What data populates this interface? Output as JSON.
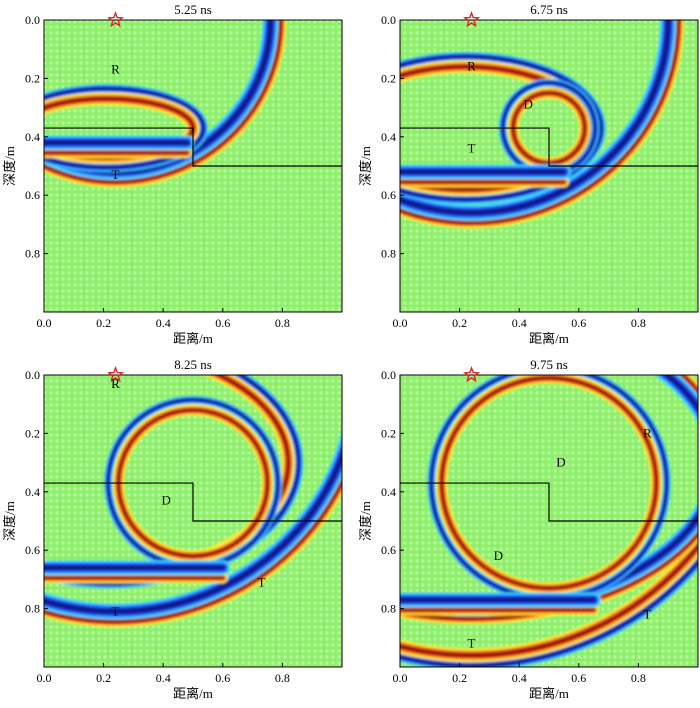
{
  "chart_data": [
    {
      "type": "heatmap",
      "title": "5.25 ns",
      "xlabel": "距离/m",
      "ylabel": "深度/m",
      "xlim": [
        0,
        1.0
      ],
      "ylim": [
        1.0,
        0
      ],
      "xticks": [
        "0.0",
        "0.2",
        "0.4",
        "0.6",
        "0.8"
      ],
      "yticks": [
        "0.0",
        "0.2",
        "0.4",
        "0.6",
        "0.8"
      ],
      "source": {
        "x": 0.24,
        "y": 0.0
      },
      "boundary": [
        [
          0,
          0.37
        ],
        [
          0.5,
          0.37
        ],
        [
          0.5,
          0.5
        ],
        [
          1.0,
          0.5
        ]
      ],
      "annotations": [
        {
          "text": "R",
          "x": 0.24,
          "y": 0.17
        },
        {
          "text": "T",
          "x": 0.24,
          "y": 0.53
        }
      ],
      "wavefronts": [
        {
          "kind": "circle",
          "cx": 0.24,
          "cy": 0.0,
          "r": 0.52,
          "amp": -1.0
        },
        {
          "kind": "ellipse",
          "cx": 0.21,
          "cy": 0.37,
          "rx": 0.29,
          "ry": 0.1,
          "amp": 0.55
        },
        {
          "kind": "flat",
          "y": 0.42,
          "x0": 0.0,
          "x1": 0.48,
          "amp": -0.8
        }
      ]
    },
    {
      "type": "heatmap",
      "title": "6.75 ns",
      "xlabel": "距离/m",
      "ylabel": "深度/m",
      "xlim": [
        0,
        1.0
      ],
      "ylim": [
        1.0,
        0
      ],
      "xticks": [
        "0.0",
        "0.2",
        "0.4",
        "0.6",
        "0.8"
      ],
      "yticks": [
        "0.0",
        "0.2",
        "0.4",
        "0.6",
        "0.8"
      ],
      "source": {
        "x": 0.24,
        "y": 0.0
      },
      "boundary": [
        [
          0,
          0.37
        ],
        [
          0.5,
          0.37
        ],
        [
          0.5,
          0.5
        ],
        [
          1.0,
          0.5
        ]
      ],
      "annotations": [
        {
          "text": "R",
          "x": 0.24,
          "y": 0.16
        },
        {
          "text": "D",
          "x": 0.43,
          "y": 0.29
        },
        {
          "text": "T",
          "x": 0.24,
          "y": 0.44
        }
      ],
      "wavefronts": [
        {
          "kind": "circle",
          "cx": 0.24,
          "cy": 0.0,
          "r": 0.66,
          "amp": -1.0
        },
        {
          "kind": "ellipse",
          "cx": 0.22,
          "cy": 0.37,
          "rx": 0.42,
          "ry": 0.21,
          "amp": 0.55
        },
        {
          "kind": "circle",
          "cx": 0.5,
          "cy": 0.37,
          "r": 0.12,
          "amp": 0.3
        },
        {
          "kind": "flat",
          "y": 0.52,
          "x0": 0.0,
          "x1": 0.55,
          "amp": -0.8
        }
      ]
    },
    {
      "type": "heatmap",
      "title": "8.25 ns",
      "xlabel": "距离/m",
      "ylabel": "深度/m",
      "xlim": [
        0,
        1.0
      ],
      "ylim": [
        1.0,
        0
      ],
      "xticks": [
        "0.0",
        "0.2",
        "0.4",
        "0.6",
        "0.8"
      ],
      "yticks": [
        "0.0",
        "0.2",
        "0.4",
        "0.6",
        "0.8"
      ],
      "source": {
        "x": 0.24,
        "y": 0.0
      },
      "boundary": [
        [
          0,
          0.37
        ],
        [
          0.5,
          0.37
        ],
        [
          0.5,
          0.5
        ],
        [
          1.0,
          0.5
        ]
      ],
      "annotations": [
        {
          "text": "R",
          "x": 0.24,
          "y": 0.03
        },
        {
          "text": "D",
          "x": 0.41,
          "y": 0.43
        },
        {
          "text": "T",
          "x": 0.73,
          "y": 0.71
        },
        {
          "text": "T",
          "x": 0.24,
          "y": 0.81
        }
      ],
      "wavefronts": [
        {
          "kind": "circle",
          "cx": 0.24,
          "cy": 0.0,
          "r": 0.81,
          "amp": -1.0
        },
        {
          "kind": "ellipse",
          "cx": 0.22,
          "cy": 0.3,
          "rx": 0.6,
          "ry": 0.38,
          "amp": 0.55
        },
        {
          "kind": "circle",
          "cx": 0.5,
          "cy": 0.37,
          "r": 0.25,
          "amp": 0.3
        },
        {
          "kind": "flat",
          "y": 0.66,
          "x0": 0.0,
          "x1": 0.6,
          "amp": -0.8
        }
      ]
    },
    {
      "type": "heatmap",
      "title": "9.75 ns",
      "xlabel": "距离/m",
      "ylabel": "深度/m",
      "xlim": [
        0,
        1.0
      ],
      "ylim": [
        1.0,
        0
      ],
      "xticks": [
        "0.0",
        "0.2",
        "0.4",
        "0.6",
        "0.8"
      ],
      "yticks": [
        "0.0",
        "0.2",
        "0.4",
        "0.6",
        "0.8"
      ],
      "source": {
        "x": 0.24,
        "y": 0.0
      },
      "boundary": [
        [
          0,
          0.37
        ],
        [
          0.5,
          0.37
        ],
        [
          0.5,
          0.5
        ],
        [
          1.0,
          0.5
        ]
      ],
      "annotations": [
        {
          "text": "R",
          "x": 0.83,
          "y": 0.2
        },
        {
          "text": "D",
          "x": 0.54,
          "y": 0.3
        },
        {
          "text": "D",
          "x": 0.33,
          "y": 0.62
        },
        {
          "text": "T",
          "x": 0.83,
          "y": 0.82
        },
        {
          "text": "T",
          "x": 0.24,
          "y": 0.92
        }
      ],
      "wavefronts": [
        {
          "kind": "circle",
          "cx": 0.24,
          "cy": 0.0,
          "r": 0.96,
          "amp": 0.7
        },
        {
          "kind": "ellipse",
          "cx": 0.24,
          "cy": 0.3,
          "rx": 0.82,
          "ry": 0.5,
          "amp": -0.9
        },
        {
          "kind": "circle",
          "cx": 0.5,
          "cy": 0.37,
          "r": 0.36,
          "amp": 0.3
        },
        {
          "kind": "flat",
          "y": 0.77,
          "x0": 0.0,
          "x1": 0.65,
          "amp": -0.8
        }
      ]
    }
  ],
  "colors": {
    "background": "#8ef06a",
    "dot": "#b8f7a0",
    "boundary": "#000000",
    "star": "#d62728"
  }
}
